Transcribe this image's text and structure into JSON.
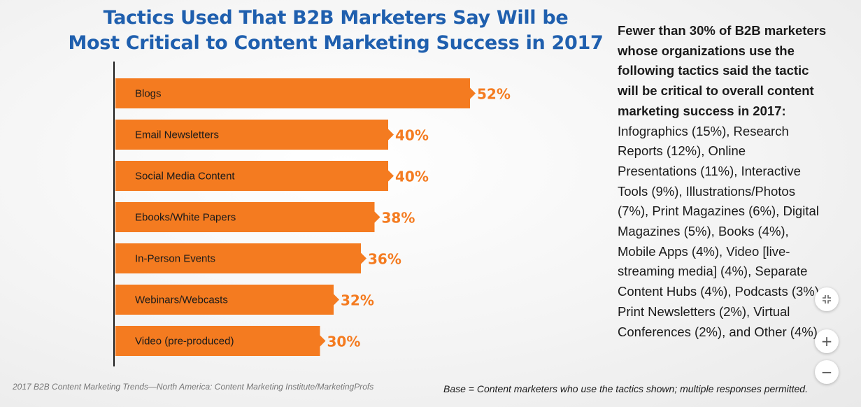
{
  "colors": {
    "title": "#1f5fae",
    "bar": "#f47b20",
    "value": "#f47b20",
    "axis": "#1a1a1a",
    "bar_text": "#1a1a1a"
  },
  "chart_data": {
    "type": "bar",
    "orientation": "horizontal",
    "title_lines": [
      "Tactics Used That B2B Marketers Say Will be",
      "Most Critical to Content Marketing Success in 2017"
    ],
    "categories": [
      "Blogs",
      "Email Newsletters",
      "Social Media Content",
      "Ebooks/White Papers",
      "In-Person Events",
      "Webinars/Webcasts",
      "Video (pre-produced)"
    ],
    "values": [
      52,
      40,
      40,
      38,
      36,
      32,
      30
    ],
    "value_labels": [
      "52%",
      "40%",
      "40%",
      "38%",
      "36%",
      "32%",
      "30%"
    ],
    "unit": "%",
    "xlim": [
      0,
      52
    ],
    "grid": false,
    "legend": "none"
  },
  "sidebar": {
    "lead": "Fewer than 30% of B2B marketers whose organizations use the following tactics said the tactic will be critical to overall content marketing success in 2017:",
    "body": " Infographics (15%), Research Reports (12%), Online Presentations (11%), Interactive Tools (9%), Illustrations/Photos (7%), Print Magazines (6%), Digital Magazines (5%), Books (4%), Mobile Apps (4%), Video [live-streaming media] (4%), Separate Content Hubs (4%), Podcasts (3%), Print Newsletters (2%), Virtual Conferences (2%), and Other (4%)"
  },
  "footer": {
    "source": "2017 B2B Content Marketing Trends—North America: Content Marketing Institute/MarketingProfs",
    "base": "Base = Content marketers who use the tactics shown; multiple responses permitted."
  },
  "controls": {
    "fit_icon": "fit-screen-icon",
    "zoom_in_label": "+",
    "zoom_out_label": "−"
  }
}
